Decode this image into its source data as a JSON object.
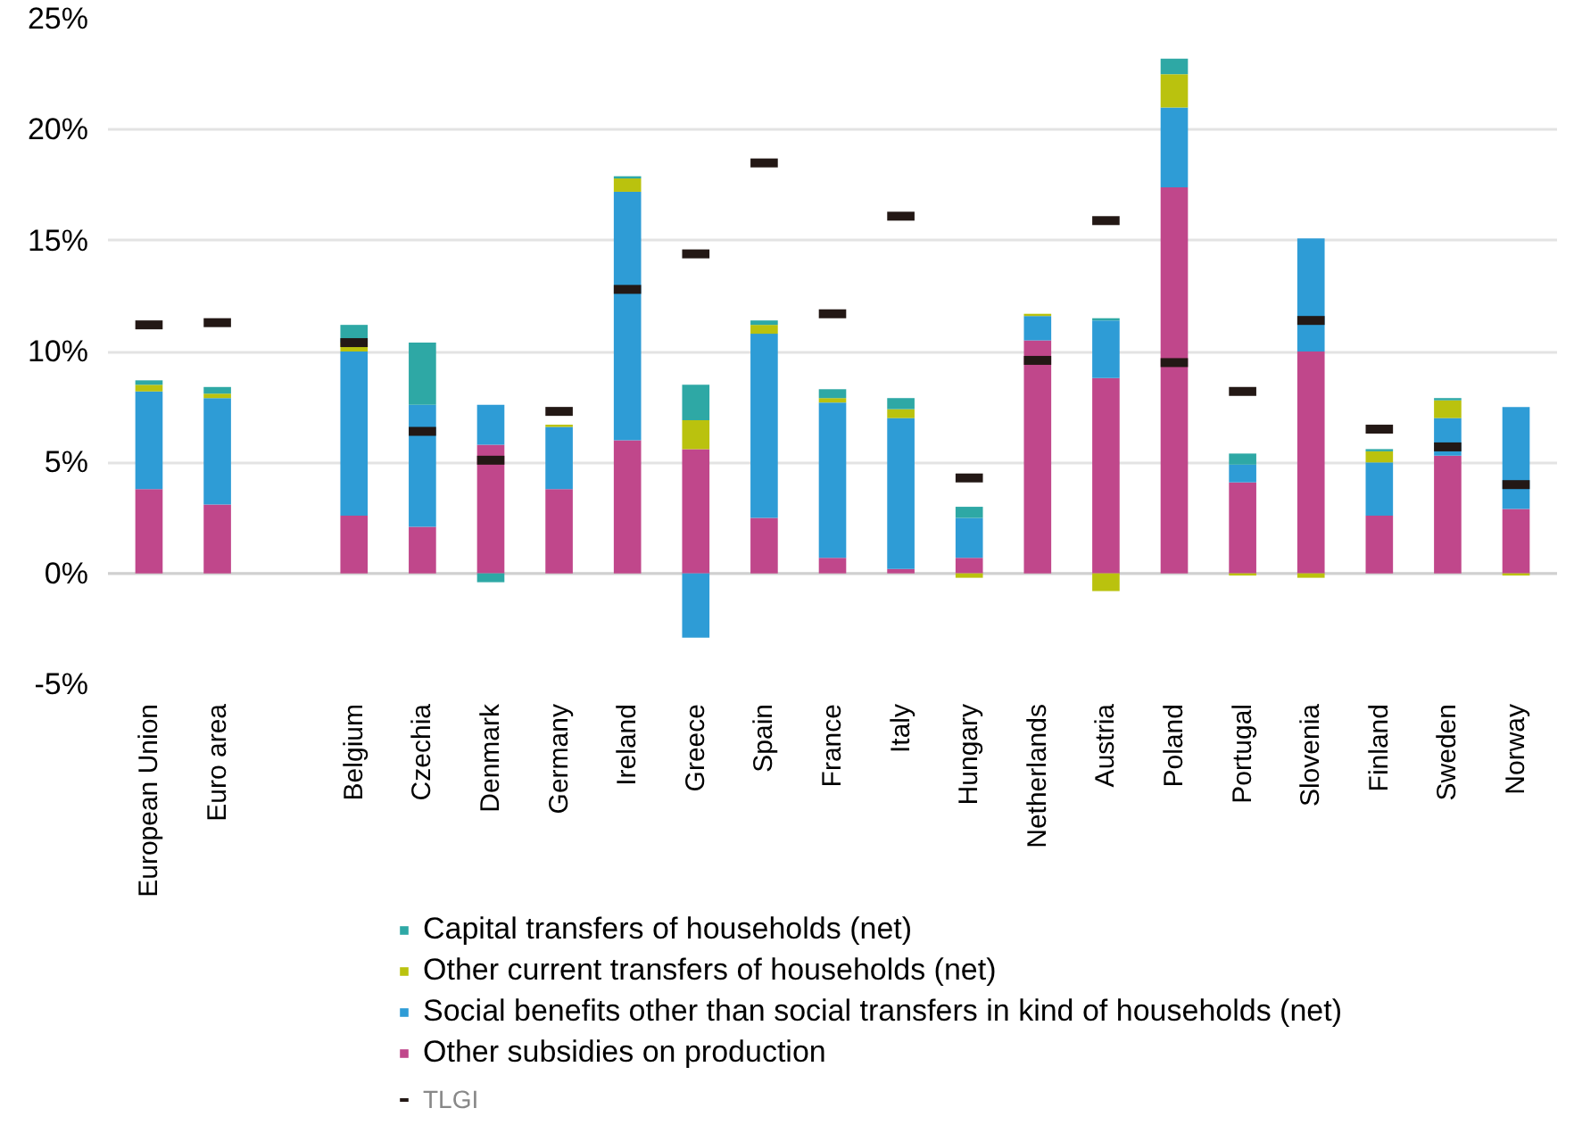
{
  "chart_data": {
    "type": "bar",
    "stacked": true,
    "categories": [
      "European Union",
      "Euro area",
      null,
      "Belgium",
      "Czechia",
      "Denmark",
      "Germany",
      "Ireland",
      "Greece",
      "Spain",
      "France",
      "Italy",
      "Hungary",
      "Netherlands",
      "Austria",
      "Poland",
      "Portugal",
      "Slovenia",
      "Finland",
      "Sweden",
      "Norway"
    ],
    "series": [
      {
        "name": "Other subsidies on production",
        "color": "#c0478b",
        "values": [
          3.8,
          3.1,
          null,
          2.6,
          2.1,
          5.8,
          3.8,
          6.0,
          5.6,
          2.5,
          0.7,
          0.2,
          0.7,
          10.5,
          8.8,
          17.4,
          4.1,
          10.0,
          2.6,
          5.3,
          2.9
        ]
      },
      {
        "name": "Social benefits other than social transfers in kind of households (net)",
        "color": "#2e9cd6",
        "values": [
          4.4,
          4.8,
          null,
          7.4,
          5.5,
          1.8,
          2.8,
          11.2,
          -2.9,
          8.3,
          7.0,
          6.8,
          1.8,
          1.1,
          2.6,
          3.6,
          0.8,
          5.1,
          2.4,
          1.7,
          4.6
        ]
      },
      {
        "name": "Other current transfers of households (net)",
        "color": "#bac20e",
        "values": [
          0.3,
          0.2,
          null,
          0.4,
          0,
          0,
          0.1,
          0.6,
          1.3,
          0.4,
          0.2,
          0.4,
          -0.2,
          0.1,
          -0.8,
          1.5,
          -0.1,
          -0.2,
          0.5,
          0.8,
          -0.1
        ]
      },
      {
        "name": "Capital transfers of households (net)",
        "color": "#2ea8a5",
        "values": [
          0.2,
          0.3,
          null,
          0.8,
          2.8,
          -0.4,
          0,
          0.1,
          1.6,
          0.2,
          0.4,
          0.5,
          0.5,
          0,
          0.1,
          0.7,
          0.5,
          0,
          0.1,
          0.1,
          0
        ]
      },
      {
        "name": "TLGI",
        "type": "scatter",
        "color": "#231815",
        "values": [
          11.2,
          11.3,
          null,
          10.4,
          6.4,
          5.1,
          7.3,
          12.8,
          14.4,
          18.5,
          11.7,
          16.1,
          4.3,
          9.6,
          15.9,
          9.5,
          8.2,
          11.4,
          6.5,
          5.7,
          4.0
        ]
      }
    ],
    "ylim": [
      -5,
      25
    ],
    "yticks": [
      {
        "value": -5,
        "label": "-5%"
      },
      {
        "value": 0,
        "label": "0%"
      },
      {
        "value": 5,
        "label": "5%"
      },
      {
        "value": 10,
        "label": "10%"
      },
      {
        "value": 15,
        "label": "15%"
      },
      {
        "value": 20,
        "label": "20%"
      },
      {
        "value": 25,
        "label": "25%"
      }
    ],
    "grid": "y",
    "legend": "bottom"
  }
}
